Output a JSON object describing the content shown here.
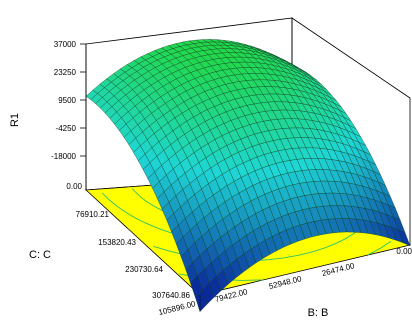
{
  "chart_data": {
    "type": "surface3d",
    "zlabel": "R1",
    "xlabel": "B: B",
    "ylabel": "C: C",
    "z_ticks": [
      "37000",
      "23250",
      "9500",
      "-4250",
      "-18000"
    ],
    "x_ticks": [
      "105896.00",
      "79422.00",
      "52948.00",
      "26474.00",
      "0.00"
    ],
    "y_ticks": [
      "0.00",
      "76910.21",
      "153820.43",
      "230730.64",
      "307640.86"
    ],
    "z_range": [
      -18000,
      37000
    ],
    "x_range": [
      105896,
      0
    ],
    "y_range": [
      0,
      307640.86
    ],
    "floor_color": "#ffff00",
    "contour_color": "#2ec36b",
    "surface_colors": [
      "#0a2a9a",
      "#1fd6d6",
      "#22d844"
    ],
    "grid": true
  }
}
